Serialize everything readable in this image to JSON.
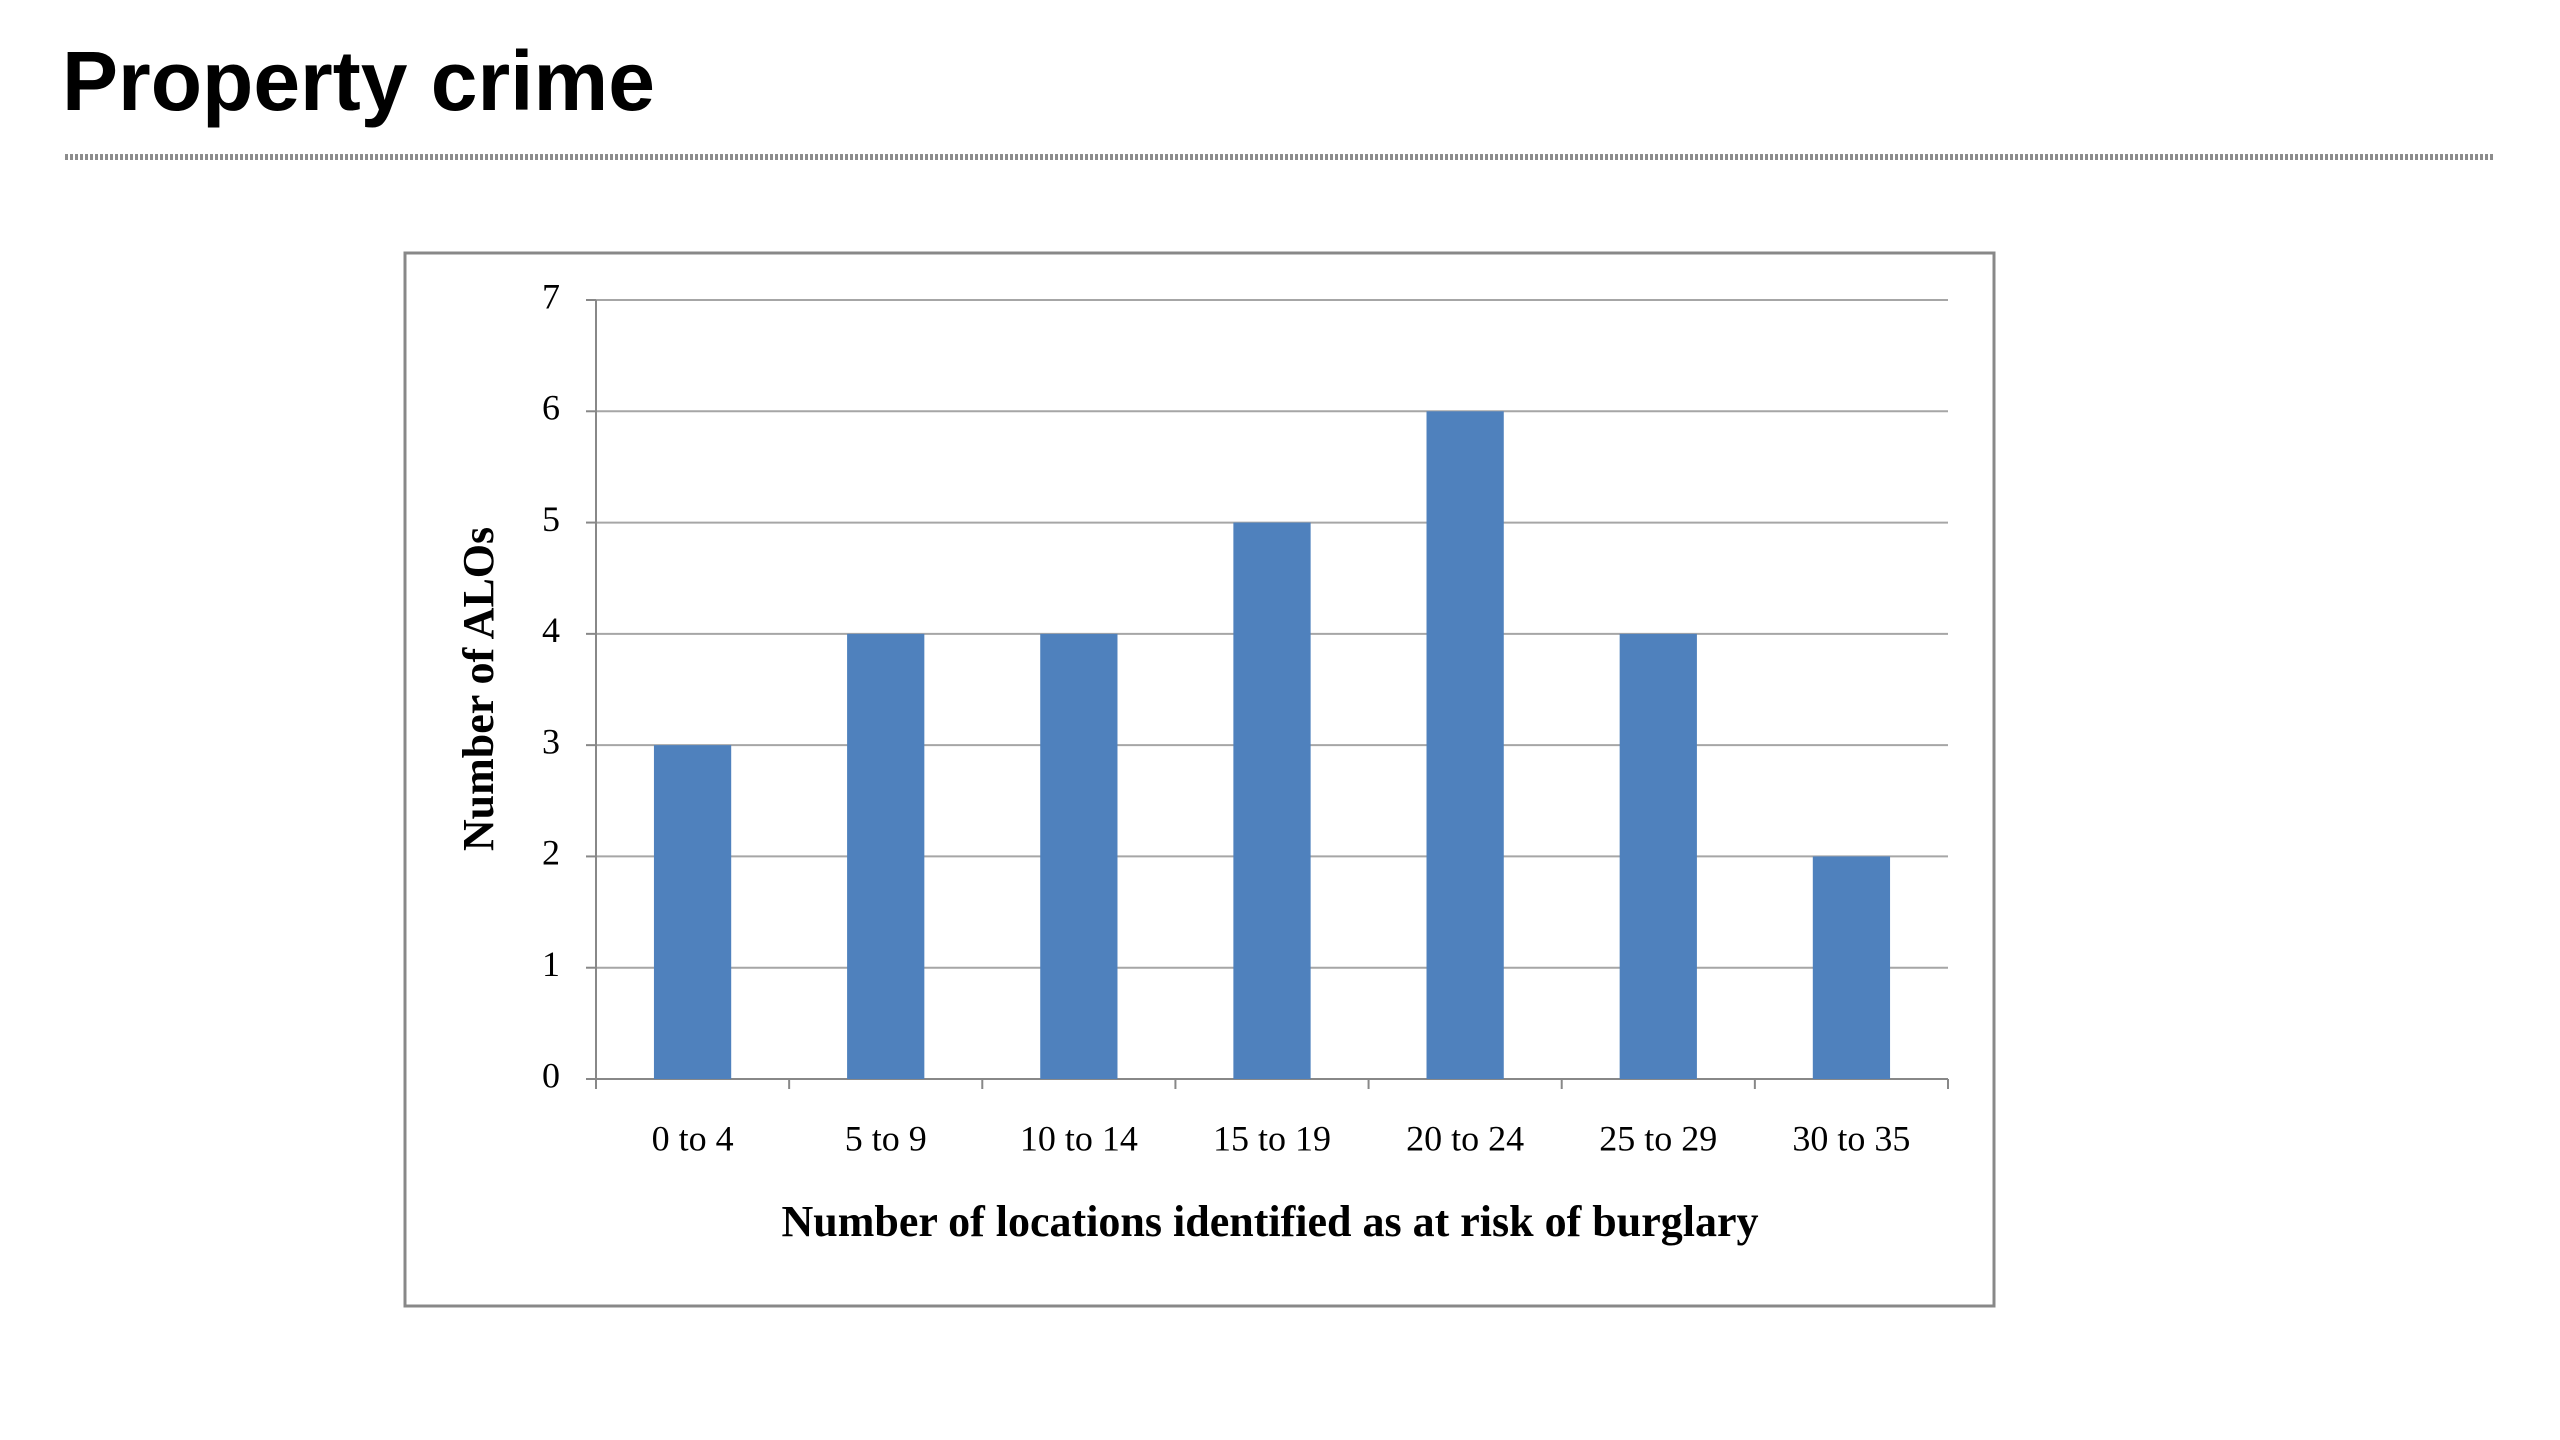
{
  "chart_data": {
    "type": "bar",
    "title": "Property crime",
    "x_label": "Number of locations identified as at risk of burglary",
    "y_label": "Number of ALOs",
    "categories": [
      "0 to 4",
      "5 to 9",
      "10 to 14",
      "15 to 19",
      "20 to 24",
      "25 to 29",
      "30 to 35"
    ],
    "values": [
      3,
      4,
      4,
      5,
      6,
      4,
      2
    ],
    "color": "#4f81bd",
    "ylim": [
      0,
      7
    ],
    "yticks": [
      0,
      1,
      2,
      3,
      4,
      5,
      6,
      7
    ],
    "grid": true
  }
}
